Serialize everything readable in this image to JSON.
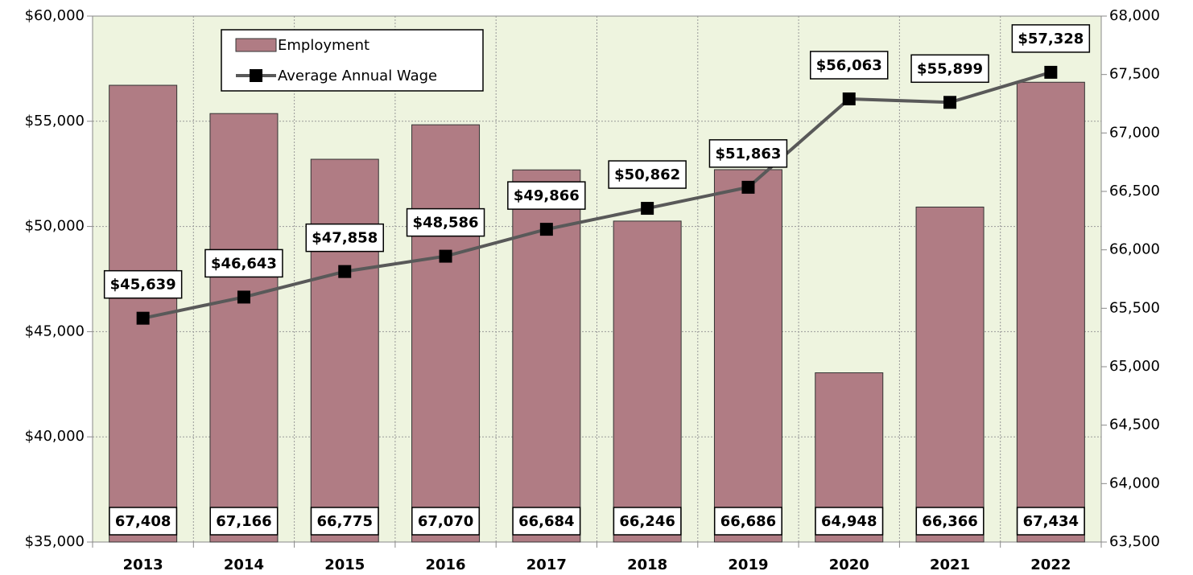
{
  "chart_data": {
    "type": "bar",
    "categories": [
      "2013",
      "2014",
      "2015",
      "2016",
      "2017",
      "2018",
      "2019",
      "2020",
      "2021",
      "2022"
    ],
    "series": [
      {
        "name": "Employment",
        "type": "bar",
        "axis": "y2",
        "color": "#b07c84",
        "values": [
          67408,
          67166,
          66775,
          67070,
          66684,
          66246,
          66686,
          64948,
          66366,
          67434
        ],
        "value_labels": [
          "67,408",
          "67,166",
          "66,775",
          "67,070",
          "66,684",
          "66,246",
          "66,686",
          "64,948",
          "66,366",
          "67,434"
        ]
      },
      {
        "name": "Average Annual Wage",
        "type": "line",
        "axis": "y",
        "color": "#595959",
        "values": [
          45639,
          46643,
          47858,
          48586,
          49866,
          50862,
          51863,
          56063,
          55899,
          57328
        ],
        "value_labels": [
          "$45,639",
          "$46,643",
          "$47,858",
          "$48,586",
          "$49,866",
          "$50,862",
          "$51,863",
          "$56,063",
          "$55,899",
          "$57,328"
        ]
      }
    ],
    "ylim": [
      35000,
      60000
    ],
    "yticks": [
      {
        "value": 35000,
        "label": "$35,000"
      },
      {
        "value": 40000,
        "label": "$40,000"
      },
      {
        "value": 45000,
        "label": "$45,000"
      },
      {
        "value": 50000,
        "label": "$50,000"
      },
      {
        "value": 55000,
        "label": "$55,000"
      },
      {
        "value": 60000,
        "label": "$60,000"
      }
    ],
    "y2lim": [
      63500,
      68000
    ],
    "y2ticks": [
      {
        "value": 63500,
        "label": "63,500"
      },
      {
        "value": 64000,
        "label": "64,000"
      },
      {
        "value": 64500,
        "label": "64,500"
      },
      {
        "value": 65000,
        "label": "65,000"
      },
      {
        "value": 65500,
        "label": "65,500"
      },
      {
        "value": 66000,
        "label": "66,000"
      },
      {
        "value": 66500,
        "label": "66,500"
      },
      {
        "value": 67000,
        "label": "67,000"
      },
      {
        "value": 67500,
        "label": "67,500"
      },
      {
        "value": 68000,
        "label": "68,000"
      }
    ],
    "grid": true,
    "legend": "top-left"
  }
}
